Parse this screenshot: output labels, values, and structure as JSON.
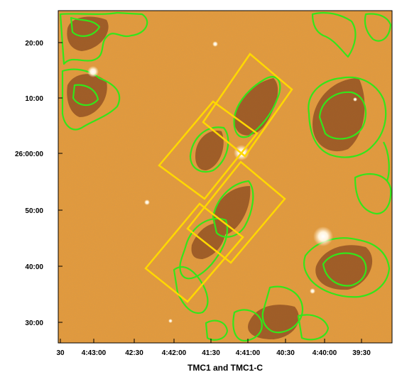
{
  "caption": "TMC1 and TMC1-C",
  "x_tick_labels": [
    "30",
    "4:43:00",
    "42:30",
    "4:42:00",
    "41:30",
    "4:41:00",
    "40:30",
    "4:40:00",
    "39:30"
  ],
  "y_tick_labels": [
    "20:00",
    "10:00",
    "26:00:00",
    "50:00",
    "40:00",
    "30:00"
  ],
  "colors": {
    "background_map": "#e39a3c",
    "dark_cloud": "#8a4a20",
    "contour": "#33e61a",
    "box": "#ffd800",
    "frame": "#000000"
  },
  "overlay_boxes_count": 4
}
